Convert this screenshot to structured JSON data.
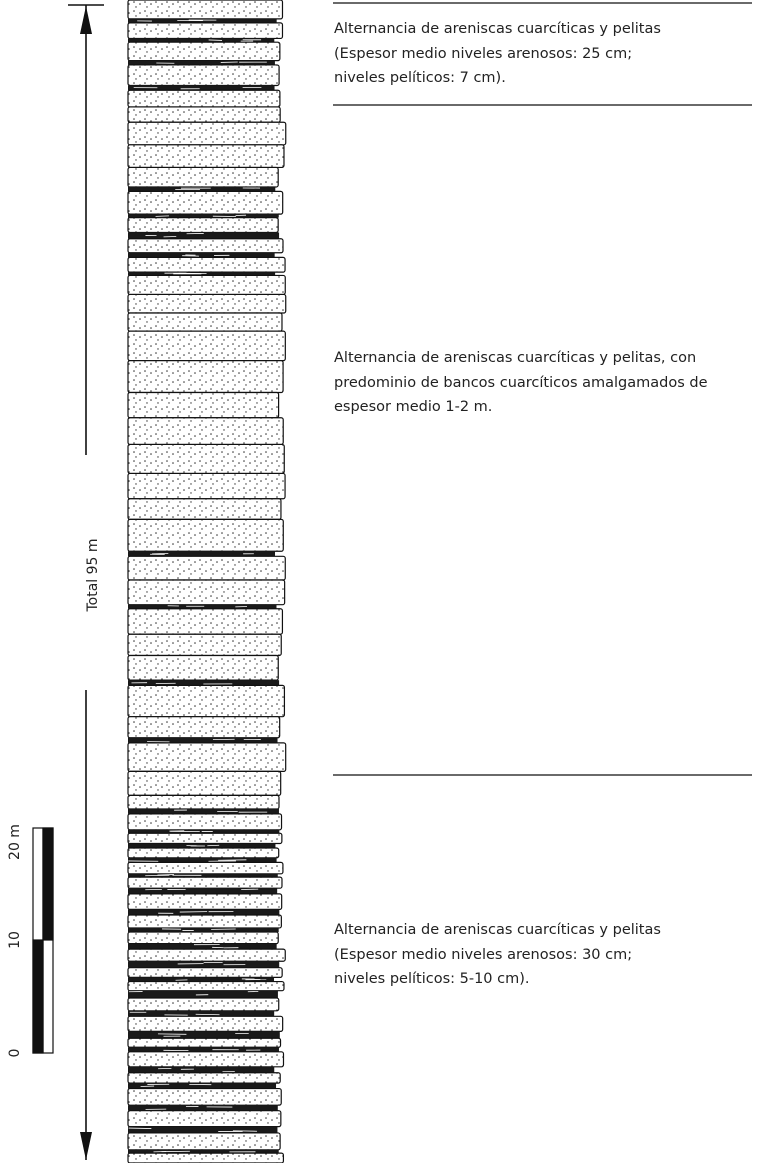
{
  "column": {
    "total_label": "Total 95 m"
  },
  "scale": {
    "labels": [
      "20 m",
      "10",
      "0"
    ]
  },
  "units": [
    {
      "lines": [
        "Alternancia de areniscas cuarcíticas y pelitas",
        "(Espesor medio niveles arenosos: 25 cm;",
        "niveles pelíticos: 7 cm)."
      ]
    },
    {
      "lines": [
        "Alternancia de areniscas cuarcíticas y pelitas, con",
        "predominio de bancos cuarcíticos amalgamados de",
        "espesor medio 1-2 m."
      ]
    },
    {
      "lines": [
        "Alternancia de areniscas cuarcíticas y pelitas",
        "(Espesor medio niveles arenosos: 30 cm;",
        "niveles pelíticos: 5-10 cm)."
      ]
    }
  ]
}
